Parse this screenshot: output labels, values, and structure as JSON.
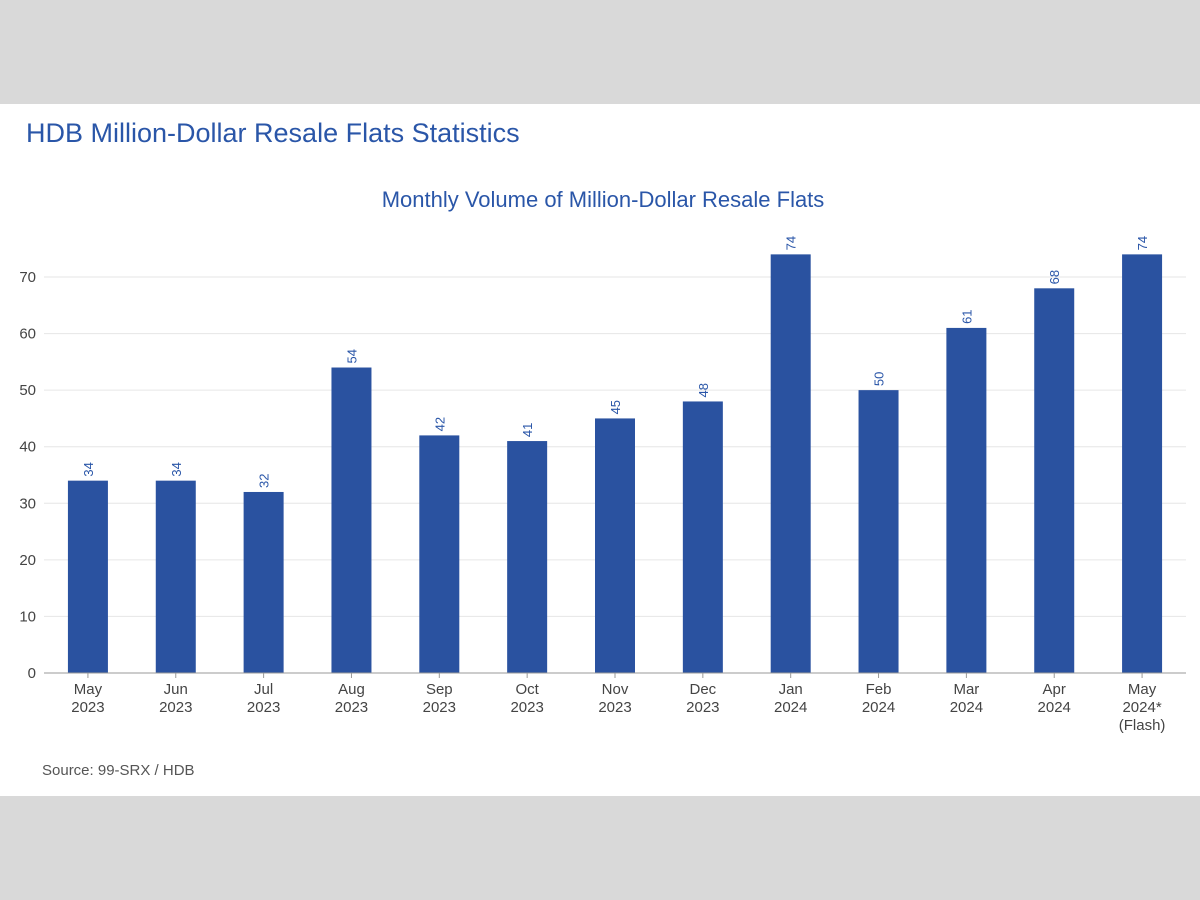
{
  "header": {
    "title": "HDB Million-Dollar Resale Flats Statistics"
  },
  "footer": {
    "source": "Source: 99-SRX / HDB"
  },
  "colors": {
    "bar": "#2a52a0",
    "title": "#2a56a8",
    "background": "#d9d9d9"
  },
  "chart_data": {
    "type": "bar",
    "title": "Monthly Volume of Million-Dollar Resale Flats",
    "xlabel": "",
    "ylabel": "",
    "ylim": [
      0,
      77
    ],
    "yticks": [
      0,
      10,
      20,
      30,
      40,
      50,
      60,
      70
    ],
    "grid": true,
    "categories": [
      [
        "May",
        "2023"
      ],
      [
        "Jun",
        "2023"
      ],
      [
        "Jul",
        "2023"
      ],
      [
        "Aug",
        "2023"
      ],
      [
        "Sep",
        "2023"
      ],
      [
        "Oct",
        "2023"
      ],
      [
        "Nov",
        "2023"
      ],
      [
        "Dec",
        "2023"
      ],
      [
        "Jan",
        "2024"
      ],
      [
        "Feb",
        "2024"
      ],
      [
        "Mar",
        "2024"
      ],
      [
        "Apr",
        "2024"
      ],
      [
        "May",
        "2024*",
        "(Flash)"
      ]
    ],
    "values": [
      34,
      34,
      32,
      54,
      42,
      41,
      45,
      48,
      74,
      50,
      61,
      68,
      74
    ],
    "data_labels": true
  }
}
